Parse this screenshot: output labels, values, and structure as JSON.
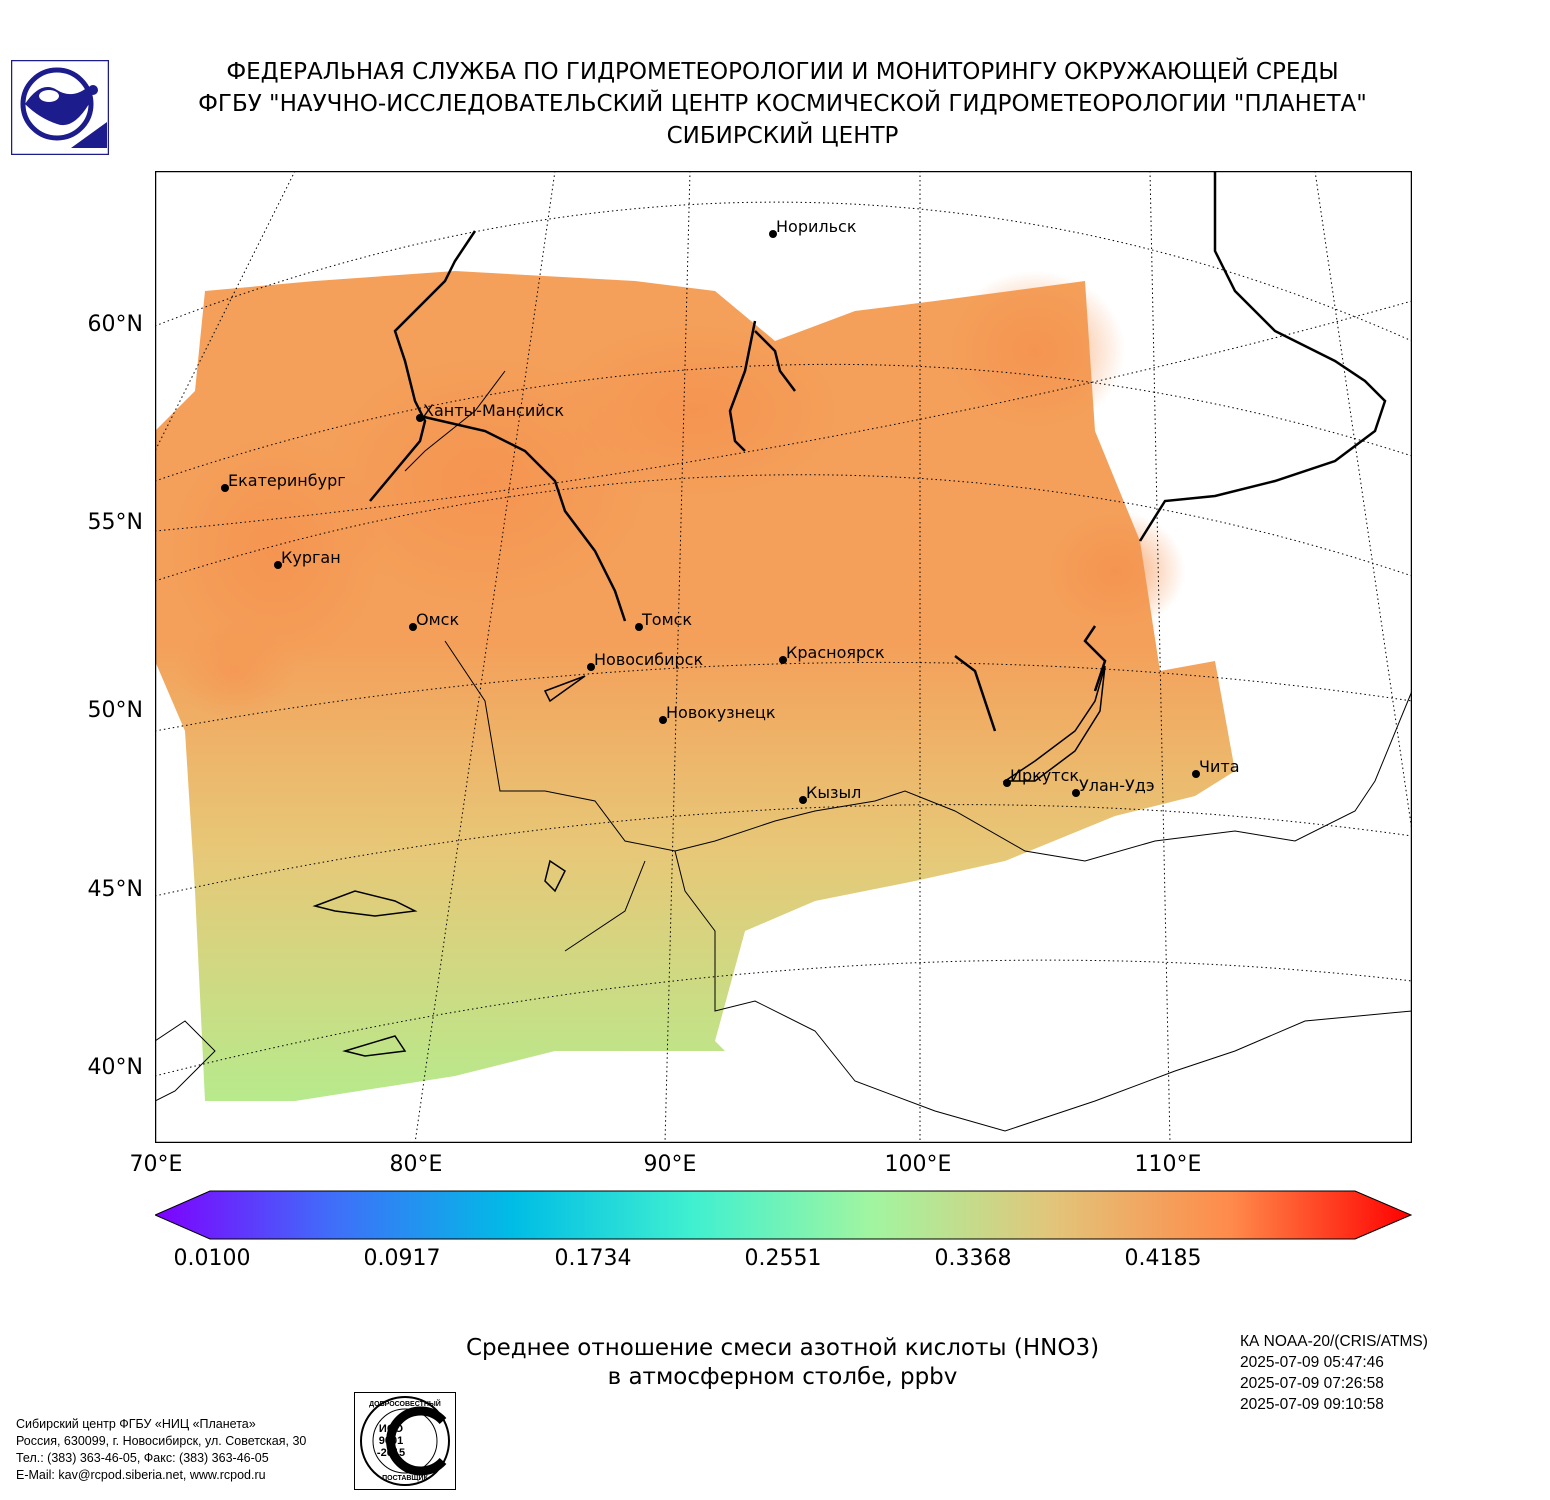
{
  "header": {
    "line1": "ФЕДЕРАЛЬНАЯ СЛУЖБА ПО ГИДРОМЕТЕОРОЛОГИИ И МОНИТОРИНГУ ОКРУЖАЮЩЕЙ СРЕДЫ",
    "line2": "ФГБУ \"НАУЧНО-ИССЛЕДОВАТЕЛЬСКИЙ ЦЕНТР КОСМИЧЕСКОЙ ГИДРОМЕТЕОРОЛОГИИ \"ПЛАНЕТА\"",
    "line3": "СИБИРСКИЙ ЦЕНТР"
  },
  "map": {
    "lat_labels": [
      "60°N",
      "55°N",
      "50°N",
      "45°N",
      "40°N"
    ],
    "lon_labels": [
      "70°E",
      "80°E",
      "90°E",
      "100°E",
      "110°E"
    ],
    "cities": [
      {
        "name": "Норильск"
      },
      {
        "name": "Ханты-Мансийск"
      },
      {
        "name": "Екатеринбург"
      },
      {
        "name": "Курган"
      },
      {
        "name": "Омск"
      },
      {
        "name": "Томск"
      },
      {
        "name": "Новосибирск"
      },
      {
        "name": "Красноярск"
      },
      {
        "name": "Новокузнецк"
      },
      {
        "name": "Кызыл"
      },
      {
        "name": "Иркутск"
      },
      {
        "name": "Улан-Удэ"
      },
      {
        "name": "Чита"
      }
    ],
    "field_colors": {
      "high": "#f4a05a",
      "mid": "#e7c878",
      "low": "#b7ea8c"
    }
  },
  "colorbar": {
    "ticks": [
      "0.0100",
      "0.0917",
      "0.1734",
      "0.2551",
      "0.3368",
      "0.4185"
    ],
    "colors": [
      "#7f00ff",
      "#3f6ff9",
      "#00bde5",
      "#40f0d0",
      "#a2f5a0",
      "#e2c57a",
      "#ff8a4a",
      "#ff0000"
    ]
  },
  "caption": {
    "line1": "Среднее отношение смеси азотной кислоты (HNO3)",
    "line2": "в атмосферном столбе, ppbv"
  },
  "satellite": {
    "name": "КА NOAA-20/(CRIS/ATMS)",
    "times": [
      "2025-07-09 05:47:46",
      "2025-07-09 07:26:58",
      "2025-07-09 09:10:58"
    ]
  },
  "footer": {
    "lines": [
      "Сибирский центр ФГБУ «НИЦ «Планета»",
      "Россия, 630099, г. Новосибирск, ул. Советская, 30",
      "Тел.: (383) 363-46-05, Факс: (383) 363-46-05",
      "E-Mail: kav@rcpod.siberia.net, www.rcpod.ru"
    ]
  },
  "iso_badge": {
    "top": "ДОБРОСОВЕСТНЫЙ",
    "mid1": "ИСО",
    "mid2": "9001",
    "mid3": "-2015",
    "bottom": "ПОСТАВЩИК"
  }
}
